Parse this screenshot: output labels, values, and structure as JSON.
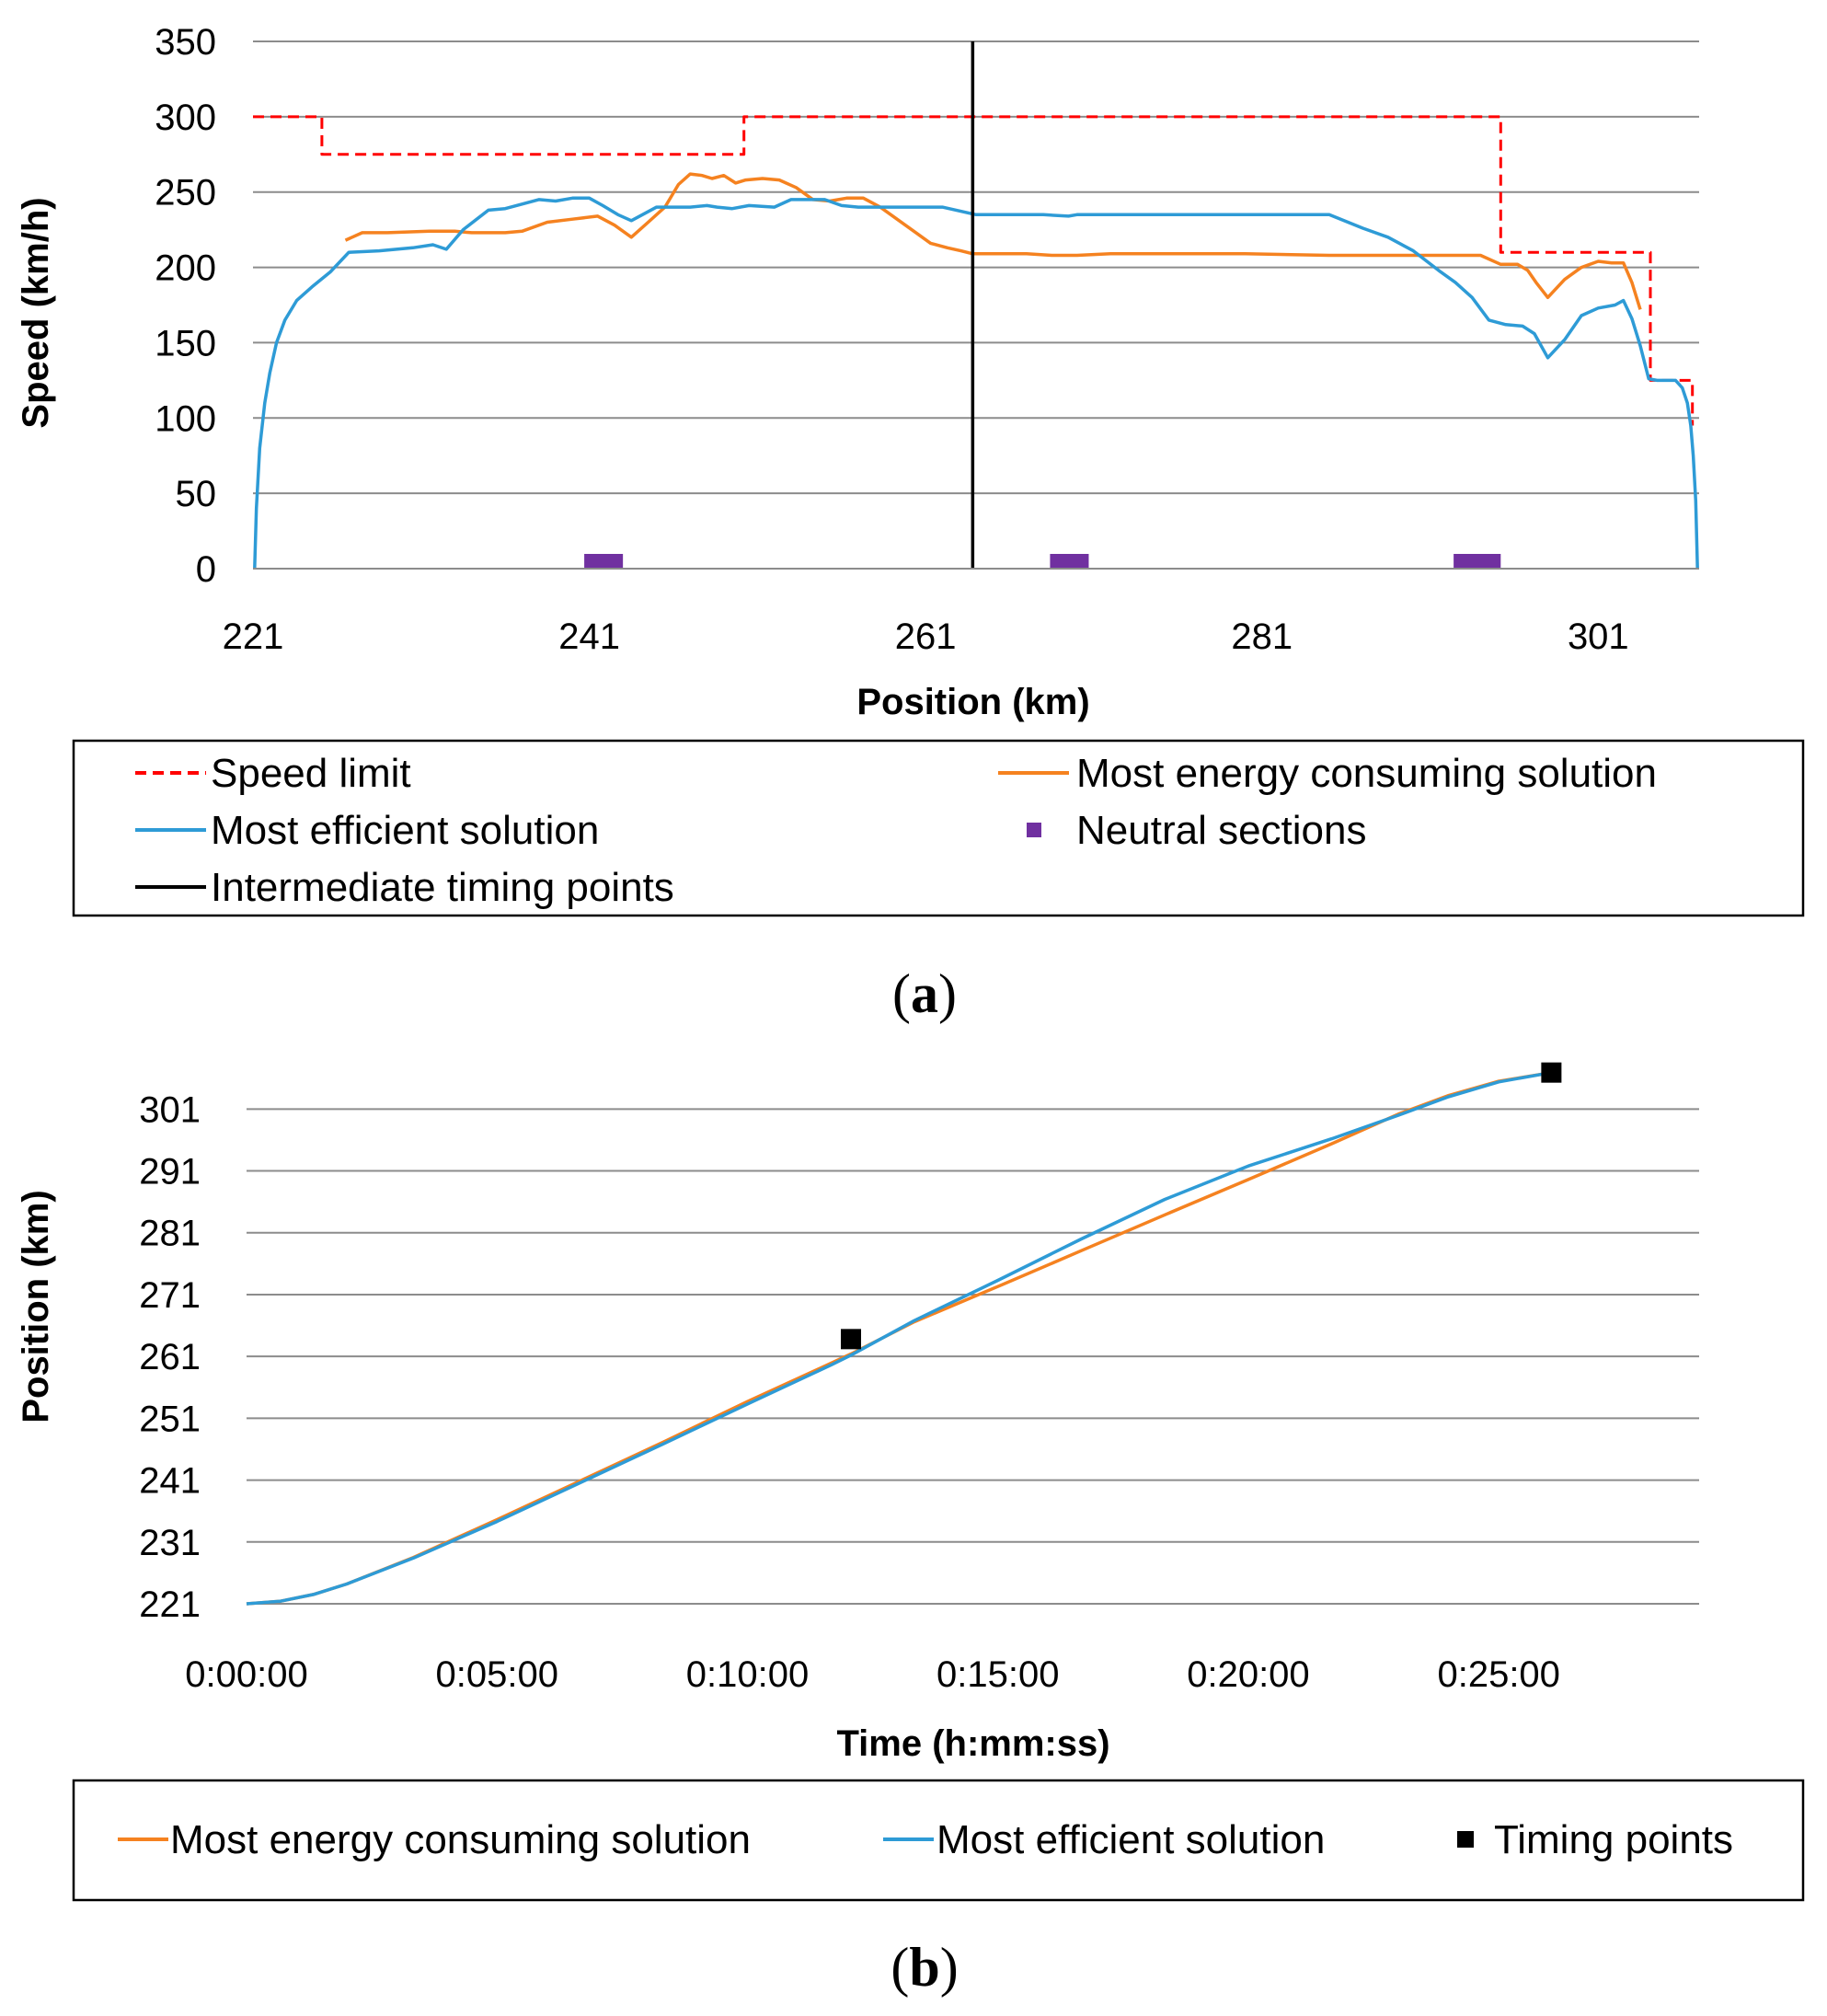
{
  "chart_data": [
    {
      "id": "a",
      "type": "line",
      "panel_label": "(a)",
      "panel_label_open": "(",
      "panel_label_letter": "a",
      "panel_label_close": ")",
      "xlabel": "Position (km)",
      "ylabel": "Speed (km/h)",
      "xlim": [
        221,
        307
      ],
      "ylim": [
        0,
        350
      ],
      "xticks": [
        "221",
        "241",
        "261",
        "281",
        "301"
      ],
      "yticks": [
        "0",
        "50",
        "100",
        "150",
        "200",
        "250",
        "300",
        "350"
      ],
      "grid": true,
      "timing_point_x": 263.8,
      "legend": {
        "speed_limit": "Speed limit",
        "most_energy": "Most energy consuming solution",
        "most_efficient": "Most efficient solution",
        "neutral": "Neutral sections",
        "intermediate": "Intermediate timing points"
      },
      "colors": {
        "speed_limit": "#ff0000",
        "most_energy": "#f58220",
        "most_efficient": "#2e9bd6",
        "neutral": "#7030a0",
        "intermediate": "#000000",
        "grid": "#8c8c8c"
      },
      "neutral_sections": [
        [
          240.7,
          243.0
        ],
        [
          268.4,
          270.7
        ],
        [
          292.4,
          295.2
        ]
      ],
      "series": [
        {
          "key": "speed_limit",
          "name": "Speed limit",
          "style": "dashed-step",
          "x": [
            221,
            225.1,
            225.1,
            250.2,
            250.2,
            295.2,
            295.2,
            304.1,
            304.1,
            306.6,
            306.6
          ],
          "y": [
            300,
            300,
            275,
            275,
            300,
            300,
            210,
            210,
            125,
            125,
            95
          ]
        },
        {
          "key": "most_energy",
          "name": "Most energy consuming solution",
          "x": [
            226.5,
            227.5,
            229,
            231.5,
            233,
            234,
            236,
            237,
            238.5,
            240,
            241.5,
            242.5,
            243.5,
            244.5,
            245.5,
            246.3,
            247,
            247.7,
            248.3,
            249,
            249.7,
            250.3,
            251.3,
            252.3,
            253.3,
            254.3,
            255.3,
            256.3,
            257.3,
            258.3,
            259.3,
            260.3,
            261.3,
            262.3,
            263.1,
            263.8,
            265,
            267,
            268.5,
            270,
            272,
            276,
            280,
            285,
            292,
            294,
            295.2,
            296.2,
            296.8,
            297.3,
            298,
            299,
            300,
            301,
            301.8,
            302.5,
            303,
            303.5
          ],
          "y": [
            218,
            223,
            223,
            224,
            224,
            223,
            223,
            224,
            230,
            232,
            234,
            228,
            220,
            230,
            240,
            255,
            262,
            261,
            259,
            261,
            256,
            258,
            259,
            258,
            253,
            245,
            244,
            246,
            246,
            240,
            232,
            224,
            216,
            213,
            211,
            209,
            209,
            209,
            208,
            208,
            209,
            209,
            209,
            208,
            208,
            208,
            202,
            202,
            198,
            190,
            180,
            192,
            200,
            204,
            203,
            203,
            190,
            172
          ]
        },
        {
          "key": "most_efficient",
          "name": "Most efficient solution",
          "x": [
            221.1,
            221.2,
            221.4,
            221.7,
            222,
            222.4,
            222.9,
            223.6,
            224.5,
            225.6,
            226.7,
            228.5,
            230.5,
            231.7,
            232.5,
            233.5,
            235,
            236,
            237,
            238,
            239,
            240,
            241,
            241.8,
            242.7,
            243.5,
            245,
            246,
            247,
            248,
            248.6,
            249.5,
            250.5,
            252,
            253,
            254,
            255,
            256,
            257,
            258,
            259,
            260,
            262,
            264,
            268,
            269.5,
            270,
            272,
            276,
            281,
            285,
            287,
            288.5,
            290,
            291.5,
            292.5,
            293.5,
            294.5,
            295.5,
            296.5,
            297.2,
            298,
            299,
            300,
            301,
            302,
            302.5,
            303,
            303.5,
            304,
            304.5,
            305,
            305.6,
            306,
            306.3,
            306.5,
            306.65,
            306.8,
            306.9
          ],
          "y": [
            0,
            40,
            80,
            110,
            130,
            150,
            165,
            178,
            187,
            197,
            210,
            211,
            213,
            215,
            212,
            225,
            238,
            239,
            242,
            245,
            244,
            246,
            246,
            241,
            235,
            231,
            240,
            240,
            240,
            241,
            240,
            239,
            241,
            240,
            245,
            245,
            245,
            241,
            240,
            240,
            240,
            240,
            240,
            235,
            235,
            234,
            235,
            235,
            235,
            235,
            235,
            226,
            220,
            211,
            198,
            190,
            180,
            165,
            162,
            161,
            156,
            140,
            152,
            168,
            173,
            175,
            178,
            166,
            148,
            126,
            125,
            125,
            125,
            120,
            110,
            95,
            75,
            45,
            0
          ]
        }
      ]
    },
    {
      "id": "b",
      "type": "line",
      "panel_label": "(b)",
      "panel_label_open": "(",
      "panel_label_letter": "b",
      "panel_label_close": ")",
      "xlabel": "Time (h:mm:ss)",
      "ylabel": "Position (km)",
      "xlim_seconds": [
        0,
        1740
      ],
      "ylim": [
        221,
        307
      ],
      "xticks": [
        "0:00:00",
        "0:05:00",
        "0:10:00",
        "0:15:00",
        "0:20:00",
        "0:25:00"
      ],
      "xtick_seconds": [
        0,
        300,
        600,
        900,
        1200,
        1500
      ],
      "yticks": [
        "221",
        "231",
        "241",
        "251",
        "261",
        "271",
        "281",
        "291",
        "301"
      ],
      "grid": true,
      "legend": {
        "most_energy": "Most energy consuming solution",
        "most_efficient": "Most efficient solution",
        "timing": "Timing points"
      },
      "colors": {
        "most_energy": "#f58220",
        "most_efficient": "#2e9bd6",
        "timing": "#000000",
        "grid": "#8c8c8c"
      },
      "timing_points": [
        {
          "t": 724,
          "pos": 263.8
        },
        {
          "t": 1563,
          "pos": 306.9
        }
      ],
      "series": [
        {
          "key": "most_energy",
          "name": "Most energy consuming solution",
          "t": [
            0,
            40,
            80,
            120,
            200,
            300,
            400,
            500,
            600,
            700,
            724,
            800,
            900,
            1000,
            1100,
            1200,
            1300,
            1380,
            1440,
            1500,
            1563
          ],
          "pos": [
            221,
            221.4,
            222.5,
            224.2,
            228.5,
            234.6,
            240.9,
            247.2,
            253.7,
            259.9,
            261.4,
            266.6,
            272.3,
            278.1,
            283.9,
            289.6,
            295.4,
            300.2,
            303.2,
            305.5,
            306.9
          ]
        },
        {
          "key": "most_efficient",
          "name": "Most efficient solution",
          "t": [
            0,
            40,
            80,
            120,
            200,
            300,
            400,
            500,
            600,
            700,
            724,
            800,
            900,
            1000,
            1100,
            1200,
            1300,
            1380,
            1440,
            1500,
            1563
          ],
          "pos": [
            221,
            221.4,
            222.5,
            224.2,
            228.4,
            234.3,
            240.6,
            246.9,
            253.3,
            259.6,
            261.2,
            266.8,
            273.3,
            280.0,
            286.4,
            291.8,
            296.2,
            300.0,
            303.0,
            305.4,
            306.9
          ]
        }
      ]
    }
  ]
}
